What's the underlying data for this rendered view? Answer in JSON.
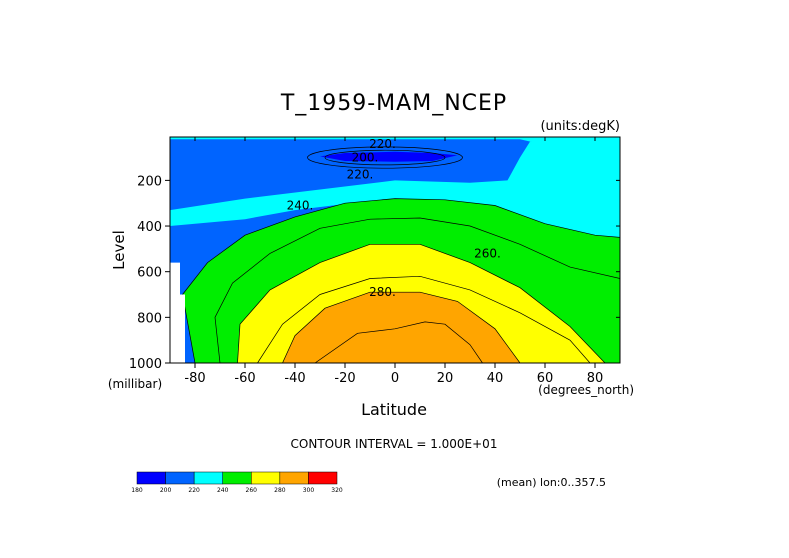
{
  "chart_data": {
    "type": "heatmap",
    "title": "T_1959-MAM_NCEP",
    "units_label": "(units:degK)",
    "xlabel": "Latitude",
    "ylabel": "Level",
    "x_unit_label": "(degrees_north)",
    "y_unit_label": "(millibar)",
    "xlim": [
      -90,
      90
    ],
    "ylim": [
      1000,
      10
    ],
    "x_ticks": [
      -80,
      -60,
      -40,
      -20,
      0,
      20,
      40,
      60,
      80
    ],
    "x_tick_labels": [
      "-80",
      "-60",
      "-40",
      "-20",
      "0",
      "20",
      "40",
      "60",
      "80"
    ],
    "y_ticks": [
      200,
      400,
      600,
      800,
      1000
    ],
    "y_tick_labels": [
      "200",
      "400",
      "600",
      "800",
      "1000"
    ],
    "contour_interval_label": "CONTOUR INTERVAL = 1.000E+01",
    "contour_labels": [
      {
        "text": "220.",
        "lat": -5,
        "lev": 40
      },
      {
        "text": "200.",
        "lat": -12,
        "lev": 100
      },
      {
        "text": "220.",
        "lat": -14,
        "lev": 175
      },
      {
        "text": "240.",
        "lat": -38,
        "lev": 310
      },
      {
        "text": "260.",
        "lat": 37,
        "lev": 520
      },
      {
        "text": "280.",
        "lat": -5,
        "lev": 690
      }
    ],
    "footer_note": "(mean) lon:0..357.5",
    "colorbar": {
      "levels": [
        "180",
        "200",
        "220",
        "240",
        "260",
        "280",
        "300",
        "320"
      ],
      "colors": [
        "#0000ff",
        "#0064ff",
        "#00ffff",
        "#00ee00",
        "#ffff00",
        "#ffa500",
        "#ff0000"
      ]
    },
    "series": [
      {
        "level": 240,
        "color": "#00ee00",
        "points": [
          [
            -80,
            1000
          ],
          [
            -85,
            700
          ],
          [
            -75,
            560
          ],
          [
            -60,
            440
          ],
          [
            -40,
            360
          ],
          [
            -20,
            300
          ],
          [
            0,
            280
          ],
          [
            20,
            285
          ],
          [
            40,
            310
          ],
          [
            60,
            390
          ],
          [
            80,
            440
          ],
          [
            90,
            450
          ],
          [
            90,
            1000
          ]
        ]
      },
      {
        "level": 250,
        "color": "#00ee00",
        "points": [
          [
            -70,
            1000
          ],
          [
            -72,
            800
          ],
          [
            -65,
            650
          ],
          [
            -50,
            520
          ],
          [
            -30,
            410
          ],
          [
            -10,
            370
          ],
          [
            10,
            365
          ],
          [
            30,
            400
          ],
          [
            50,
            480
          ],
          [
            70,
            580
          ],
          [
            90,
            630
          ],
          [
            90,
            1000
          ]
        ]
      },
      {
        "level": 260,
        "color": "#ffff00",
        "points": [
          [
            -63,
            1000
          ],
          [
            -62,
            830
          ],
          [
            -50,
            680
          ],
          [
            -30,
            560
          ],
          [
            -10,
            480
          ],
          [
            10,
            480
          ],
          [
            30,
            560
          ],
          [
            50,
            670
          ],
          [
            70,
            840
          ],
          [
            84,
            1000
          ]
        ]
      },
      {
        "level": 270,
        "color": "#ffff00",
        "points": [
          [
            -55,
            1000
          ],
          [
            -45,
            830
          ],
          [
            -30,
            700
          ],
          [
            -10,
            630
          ],
          [
            10,
            620
          ],
          [
            30,
            680
          ],
          [
            50,
            780
          ],
          [
            70,
            900
          ],
          [
            78,
            1000
          ]
        ]
      },
      {
        "level": 280,
        "color": "#ffa500",
        "points": [
          [
            -45,
            1000
          ],
          [
            -40,
            880
          ],
          [
            -28,
            760
          ],
          [
            -10,
            690
          ],
          [
            10,
            690
          ],
          [
            25,
            730
          ],
          [
            40,
            850
          ],
          [
            50,
            1000
          ]
        ]
      },
      {
        "level": 290,
        "color": "#ffa500",
        "points": [
          [
            -32,
            1000
          ],
          [
            -15,
            870
          ],
          [
            0,
            850
          ],
          [
            12,
            820
          ],
          [
            20,
            830
          ],
          [
            30,
            920
          ],
          [
            35,
            1000
          ]
        ]
      }
    ]
  }
}
